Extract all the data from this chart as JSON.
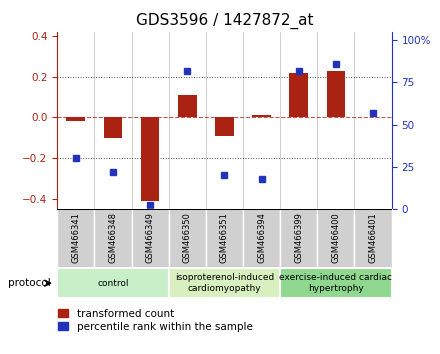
{
  "title": "GDS3596 / 1427872_at",
  "samples": [
    "GSM466341",
    "GSM466348",
    "GSM466349",
    "GSM466350",
    "GSM466351",
    "GSM466394",
    "GSM466399",
    "GSM466400",
    "GSM466401"
  ],
  "transformed_count": [
    -0.02,
    -0.1,
    -0.41,
    0.11,
    -0.09,
    0.01,
    0.22,
    0.23,
    0.0
  ],
  "percentile_rank": [
    30,
    22,
    2,
    82,
    20,
    18,
    82,
    86,
    57
  ],
  "groups": [
    {
      "label": "control",
      "start": 0,
      "end": 3
    },
    {
      "label": "isoproterenol-induced\ncardiomyopathy",
      "start": 3,
      "end": 6
    },
    {
      "label": "exercise-induced cardiac\nhypertrophy",
      "start": 6,
      "end": 9
    }
  ],
  "group_colors": [
    "#c8f0c8",
    "#d8f0c0",
    "#90d890"
  ],
  "bar_color": "#aa2211",
  "dot_color": "#2233bb",
  "ylim_left": [
    -0.45,
    0.42
  ],
  "ylim_right": [
    0,
    105
  ],
  "yticks_left": [
    -0.4,
    -0.2,
    0.0,
    0.2,
    0.4
  ],
  "yticks_right": [
    0,
    25,
    50,
    75,
    100
  ],
  "ytick_labels_right": [
    "0",
    "25",
    "50",
    "75",
    "100%"
  ],
  "hlines_dotted": [
    -0.2,
    0.2
  ],
  "hline_dashed": 0.0,
  "title_fontsize": 11,
  "tick_fontsize": 7.5,
  "legend_fontsize": 7.5,
  "sample_fontsize": 6,
  "group_fontsize": 6.5,
  "protocol_label": "protocol",
  "bg_color": "#ffffff",
  "sample_bg": "#d0d0d0",
  "sample_border": "#ffffff"
}
